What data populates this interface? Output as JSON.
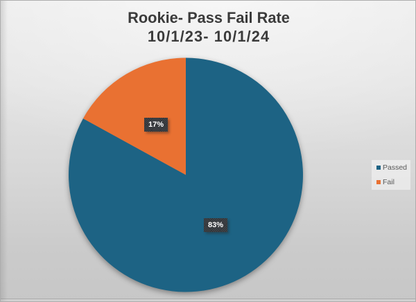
{
  "chart_data": {
    "type": "pie",
    "title": "Rookie- Pass Fail Rate",
    "subtitle": "10/1/23- 10/1/24",
    "slices": [
      {
        "name": "Passed",
        "value": 83,
        "label": "83%",
        "color": "#1d6384"
      },
      {
        "name": "Fail",
        "value": 17,
        "label": "17%",
        "color": "#e97132"
      }
    ],
    "start_angle_deg": 0,
    "direction": "clockwise",
    "legend_position": "right",
    "data_labels": "percent"
  },
  "legend": {
    "items": [
      {
        "label": "Passed",
        "color": "#1d6384"
      },
      {
        "label": "Fail",
        "color": "#e97132"
      }
    ]
  }
}
